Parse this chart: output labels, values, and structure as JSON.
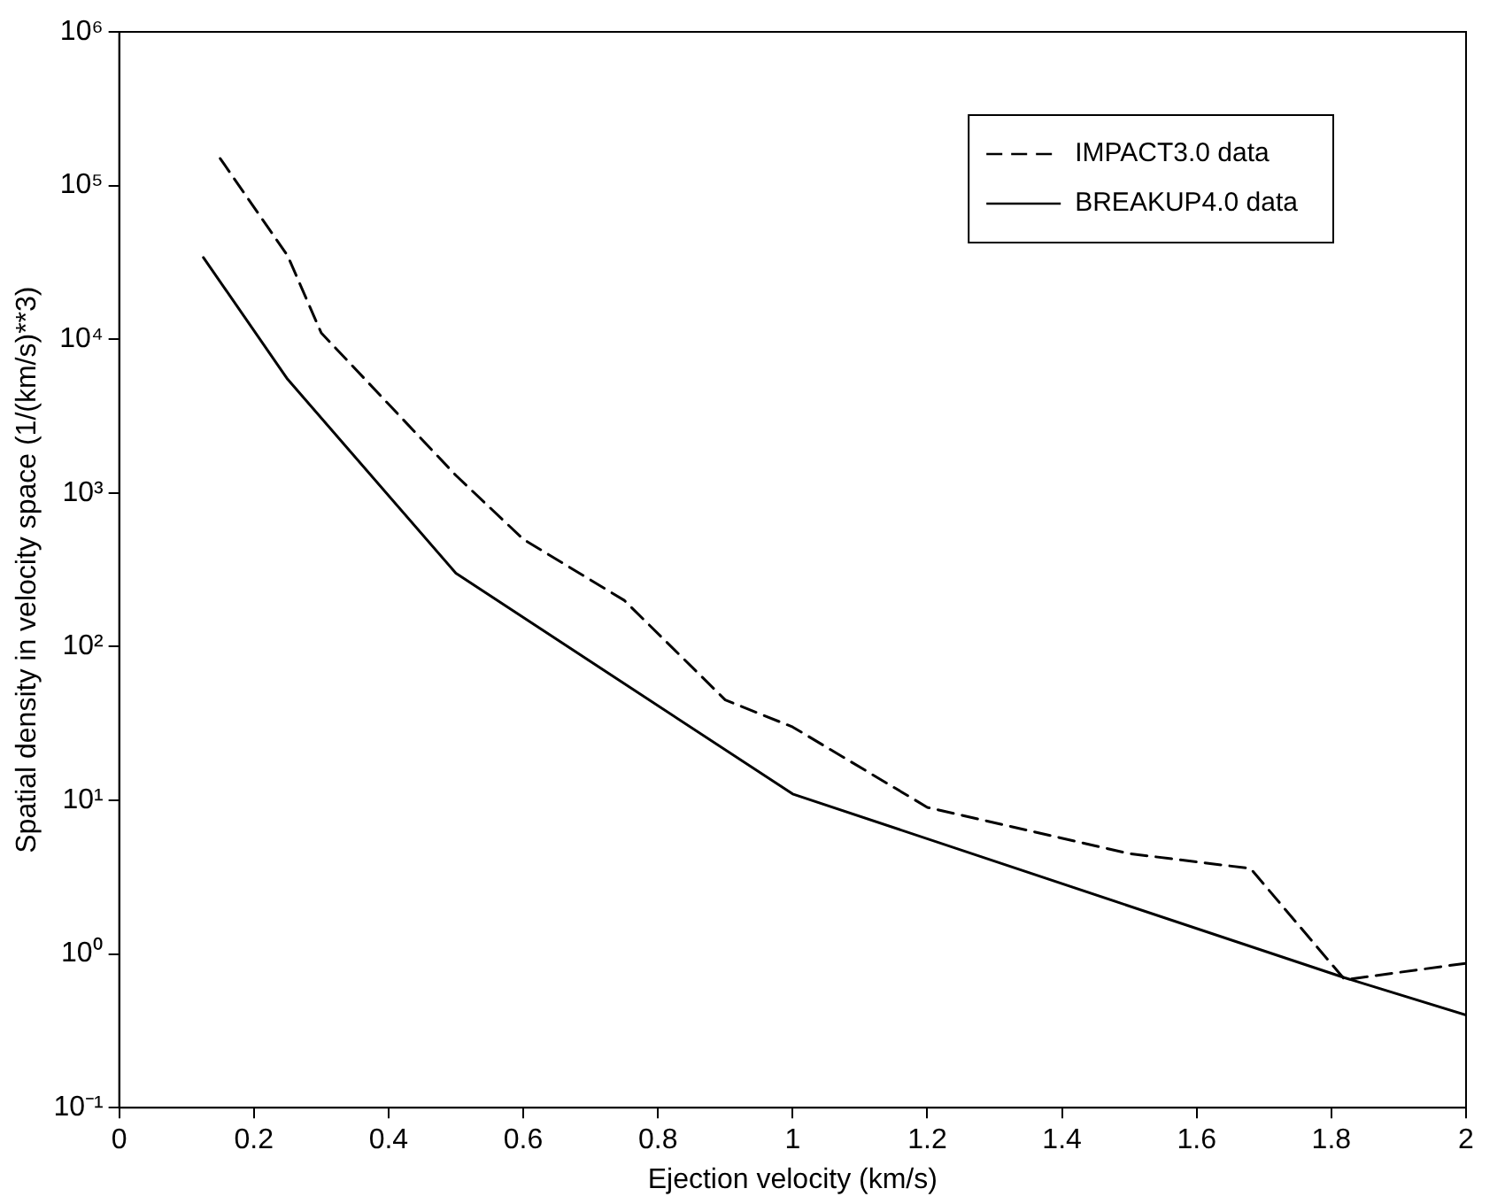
{
  "chart_data": {
    "type": "line",
    "xlabel": "Ejection velocity (km/s)",
    "ylabel": "Spatial density in velocity space (1/(km/s)**3)",
    "series": [
      {
        "name": "IMPACT3.0 data",
        "color": "#000000",
        "line_style": "dashed",
        "x": [
          0.15,
          0.25,
          0.3,
          0.5,
          0.6,
          0.75,
          0.9,
          1.0,
          1.2,
          1.5,
          1.68,
          1.82,
          2.0
        ],
        "values": [
          150000,
          35000,
          11000,
          1300,
          500,
          200,
          45,
          30,
          9,
          4.5,
          3.6,
          0.68,
          0.87
        ]
      },
      {
        "name": "BREAKUP4.0 data",
        "color": "#000000",
        "line_style": "solid",
        "x": [
          0.125,
          0.25,
          0.5,
          1.0,
          1.82,
          2.0
        ],
        "values": [
          34000,
          5500,
          300,
          11,
          0.7,
          0.4
        ]
      }
    ],
    "log": "y",
    "xlim": [
      0,
      2
    ],
    "xticks": [
      0,
      0.2,
      0.4,
      0.6,
      0.8,
      1,
      1.2,
      1.4,
      1.6,
      1.8,
      2
    ],
    "ylim": [
      0.1,
      1000000
    ],
    "yticks": [
      {
        "value": 0.1,
        "label": "10⁻¹"
      },
      {
        "value": 1,
        "label": "10⁰"
      },
      {
        "value": 10,
        "label": "10¹"
      },
      {
        "value": 100,
        "label": "10²"
      },
      {
        "value": 1000,
        "label": "10³"
      },
      {
        "value": 10000,
        "label": "10⁴"
      },
      {
        "value": 100000,
        "label": "10⁵"
      },
      {
        "value": 1000000,
        "label": "10⁶"
      }
    ],
    "grid": false,
    "legend": "top right",
    "marker": "none"
  }
}
